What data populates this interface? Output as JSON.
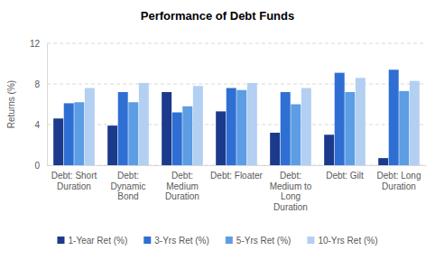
{
  "chart_data": {
    "type": "bar",
    "title": "Performance of Debt Funds",
    "y_label": "Returns (%)",
    "categories": [
      "Debt: Short Duration",
      "Debt: Dynamic Bond",
      "Debt: Medium Duration",
      "Debt: Floater",
      "Debt: Medium to Long Duration",
      "Debt: Gilt",
      "Debt: Long Duration"
    ],
    "series": [
      {
        "name": "1-Year Ret (%)",
        "color": "#1c3a8c",
        "values": [
          4.6,
          3.9,
          7.2,
          5.3,
          3.2,
          3.0,
          0.7
        ]
      },
      {
        "name": "3-Yrs Ret (%)",
        "color": "#2f6fd4",
        "values": [
          6.1,
          7.2,
          5.2,
          7.6,
          7.2,
          9.1,
          9.4
        ]
      },
      {
        "name": "5-Yrs Ret (%)",
        "color": "#5c9de3",
        "values": [
          6.2,
          6.2,
          5.8,
          7.4,
          6.0,
          7.2,
          7.3
        ]
      },
      {
        "name": "10-Yrs Ret (%)",
        "color": "#b3cff2",
        "values": [
          7.6,
          8.1,
          7.8,
          8.1,
          7.6,
          8.6,
          8.3
        ]
      }
    ],
    "ylim": [
      0,
      12
    ],
    "yticks": [
      0,
      4,
      8,
      12
    ],
    "grid": true,
    "legend": "bottom"
  }
}
